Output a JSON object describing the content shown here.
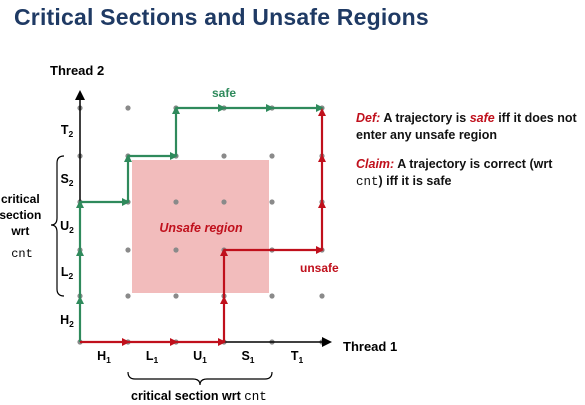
{
  "title": "Critical Sections and Unsafe Regions",
  "axes": {
    "x_label": "Thread 1",
    "y_label": "Thread 2",
    "x_ticks": [
      {
        "main": "H",
        "sub": "1"
      },
      {
        "main": "L",
        "sub": "1"
      },
      {
        "main": "U",
        "sub": "1"
      },
      {
        "main": "S",
        "sub": "1"
      },
      {
        "main": "T",
        "sub": "1"
      }
    ],
    "y_ticks": [
      {
        "main": "H",
        "sub": "2"
      },
      {
        "main": "L",
        "sub": "2"
      },
      {
        "main": "U",
        "sub": "2"
      },
      {
        "main": "S",
        "sub": "2"
      },
      {
        "main": "T",
        "sub": "2"
      }
    ]
  },
  "region_label": "Unsafe region",
  "trajectories": {
    "safe_label": "safe",
    "unsafe_label": "unsafe"
  },
  "bracket_labels": {
    "left": [
      "critical",
      "section",
      "wrt",
      "cnt"
    ],
    "bottom_text": "critical section wrt ",
    "bottom_mono": "cnt"
  },
  "notes": {
    "def_prefix": "Def:",
    "def_a": " A trajectory is ",
    "def_safe": "safe",
    "def_b": "  iff it does not enter any unsafe region",
    "claim_prefix": "Claim:",
    "claim_a": " A trajectory is  correct (wrt ",
    "claim_mono": "cnt",
    "claim_b": ")  iff it is safe"
  },
  "colors": {
    "safe": "#2f8a5c",
    "unsafe": "#c0101c",
    "region": "#f2bcbc",
    "grid_dot": "#8a8a8a",
    "title": "#1f3a64"
  }
}
